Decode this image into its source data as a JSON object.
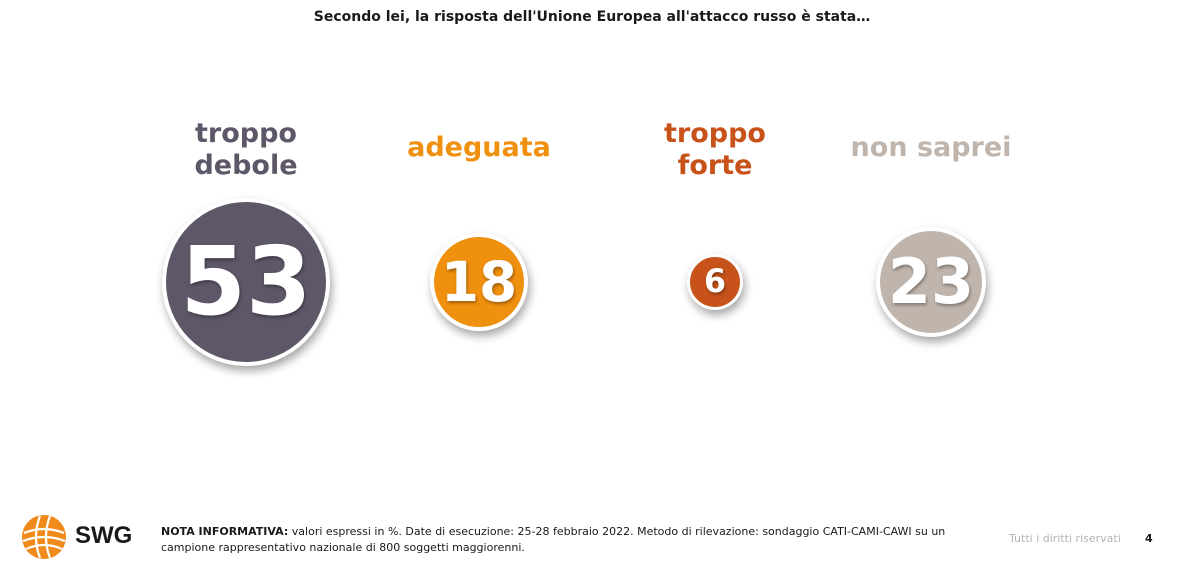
{
  "title": "Secondo lei, la risposta dell'Unione Europea all'attacco russo è stata…",
  "chart_data": {
    "type": "bubble",
    "title": "Secondo lei, la risposta dell'Unione Europea all'attacco russo è stata…",
    "unit": "%",
    "categories": [
      "troppo\ndebole",
      "adeguata",
      "troppo\nforte",
      "non saprei"
    ],
    "values": [
      53,
      18,
      6,
      23
    ],
    "colors": [
      "#5e5768",
      "#f0900f",
      "#c8531a",
      "#c0b5ac"
    ],
    "label_colors": [
      "#5e5768",
      "#f0900f",
      "#c8531a",
      "#c0b5ac"
    ]
  },
  "footer": {
    "logo_text": "SWG",
    "note_label": "NOTA INFORMATIVA:",
    "note_text": " valori espressi in %. Date di esecuzione: 25-28 febbraio 2022. Metodo di rilevazione: sondaggio CATI-CAMI-CAWI su un campione rappresentativo nazionale di 800 soggetti maggiorenni.",
    "rights": "Tutti i diritti riservati",
    "page_number": "4"
  }
}
